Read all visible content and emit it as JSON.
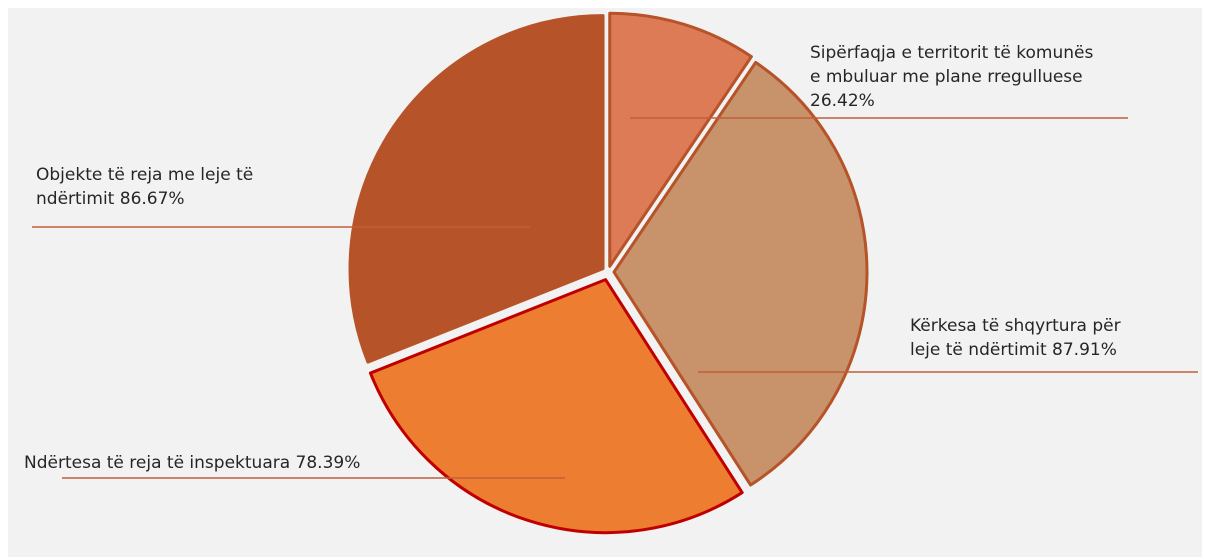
{
  "chart_data": {
    "type": "pie",
    "title": "",
    "slices": [
      {
        "label": "Sipërfaqja e territorit të komunës e mbuluar me plane rregulluese 26.42%",
        "lines": [
          "Sipërfaqja e territorit të komunës",
          "e mbuluar me plane rregulluese",
          "26.42%"
        ],
        "value": 26.42,
        "color": "#de7b57",
        "edge": "#b65328"
      },
      {
        "label": "Kërkesa të shqyrtura për leje të ndërtimit 87.91%",
        "lines": [
          "Kërkesa të shqyrtura për",
          "leje të ndërtimit 87.91%"
        ],
        "value": 87.91,
        "color": "#c8926a",
        "edge": "#b65328"
      },
      {
        "label": "Ndërtesa të reja të inspektuara 78.39%",
        "lines": [
          "Ndërtesa të reja të inspektuara 78.39%"
        ],
        "value": 78.39,
        "color": "#ed7d31",
        "edge": "#c00000"
      },
      {
        "label": "Objekte të reja me leje të ndërtimit 86.67%",
        "lines": [
          "Objekte të reja me leje të",
          "ndërtimit 86.67%"
        ],
        "value": 86.67,
        "color": "#b65328",
        "edge": "#b65328"
      }
    ],
    "leader_line_color": "#c0603a",
    "background": "#f2f2f2"
  }
}
